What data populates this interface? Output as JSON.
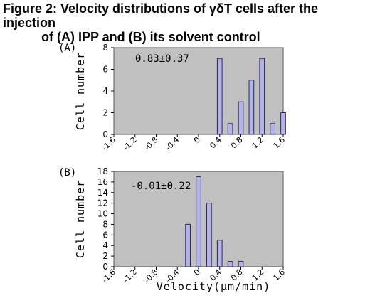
{
  "figure": {
    "title_line1": "Figure 2: Velocity distributions of γδT cells after the injection",
    "title_line2": "of (A) IPP and (B) its solvent control",
    "xlabel": "Velocity(μm/min)"
  },
  "chart_data": [
    {
      "type": "bar",
      "panel_label": "(A)",
      "annotation": "0.83±0.37",
      "ylabel": "Cell number",
      "xlabel": "Velocity(μm/min)",
      "xlim": [
        -1.6,
        1.6
      ],
      "xticks": [
        "-1.6",
        "-1.2",
        "-0.8",
        "-0.4",
        "0",
        "0.4",
        "0.8",
        "1.2",
        "1.6"
      ],
      "ylim": [
        0,
        8
      ],
      "yticks": [
        "0",
        "2",
        "4",
        "6",
        "8"
      ],
      "bin_width": 0.2,
      "x": [
        0.4,
        0.6,
        0.8,
        1.0,
        1.2,
        1.4,
        1.6
      ],
      "values": [
        7,
        1,
        3,
        5,
        7,
        1,
        2
      ],
      "grid": false,
      "legend": "none",
      "colors": {
        "bar": "#b3b3e6",
        "bar_stroke": "#2a2a55",
        "plot_bg": "#c0c0c0"
      }
    },
    {
      "type": "bar",
      "panel_label": "(B)",
      "annotation": "-0.01±0.22",
      "ylabel": "Cell number",
      "xlabel": "Velocity(μm/min)",
      "xlim": [
        -1.6,
        1.6
      ],
      "xticks": [
        "-1.6",
        "-1.2",
        "-0.8",
        "-0.4",
        "0",
        "0.4",
        "0.8",
        "1.2",
        "1.6"
      ],
      "ylim": [
        0,
        18
      ],
      "yticks": [
        "0",
        "2",
        "4",
        "6",
        "8",
        "10",
        "12",
        "14",
        "16",
        "18"
      ],
      "bin_width": 0.2,
      "x": [
        -0.2,
        0.0,
        0.2,
        0.4,
        0.6,
        0.8
      ],
      "values": [
        8,
        17,
        12,
        5,
        1,
        1
      ],
      "grid": false,
      "legend": "none",
      "colors": {
        "bar": "#b3b3e6",
        "bar_stroke": "#2a2a55",
        "plot_bg": "#c0c0c0"
      }
    }
  ]
}
